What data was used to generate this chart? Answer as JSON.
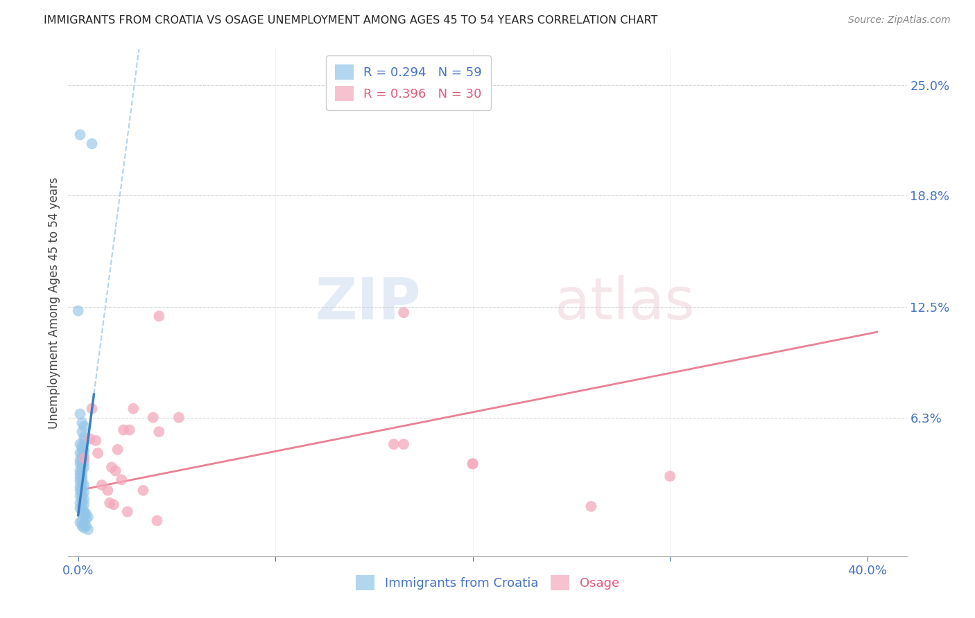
{
  "title": "IMMIGRANTS FROM CROATIA VS OSAGE UNEMPLOYMENT AMONG AGES 45 TO 54 YEARS CORRELATION CHART",
  "source": "Source: ZipAtlas.com",
  "ylabel": "Unemployment Among Ages 45 to 54 years",
  "xlim": [
    -0.005,
    0.42
  ],
  "ylim": [
    -0.015,
    0.27
  ],
  "xtick_values": [
    0.0,
    0.1,
    0.2,
    0.3,
    0.4
  ],
  "xticklabels": [
    "0.0%",
    "",
    "",
    "",
    "40.0%"
  ],
  "ytick_right_labels": [
    "25.0%",
    "18.8%",
    "12.5%",
    "6.3%",
    ""
  ],
  "ytick_right_values": [
    0.25,
    0.188,
    0.125,
    0.063,
    0.0
  ],
  "grid_color": "#cccccc",
  "legend_r1": "R = 0.294",
  "legend_n1": "N = 59",
  "legend_r2": "R = 0.396",
  "legend_n2": "N = 30",
  "blue_color": "#92c5e8",
  "pink_color": "#f4a9bc",
  "trendline_blue_solid_color": "#3a7fc1",
  "trendline_blue_dashed_color": "#aacfe8",
  "trendline_pink_color": "#e8728a",
  "blue_scatter_x": [
    0.001,
    0.007,
    0.0,
    0.001,
    0.002,
    0.003,
    0.002,
    0.003,
    0.003,
    0.001,
    0.002,
    0.003,
    0.002,
    0.003,
    0.001,
    0.002,
    0.003,
    0.002,
    0.001,
    0.003,
    0.001,
    0.002,
    0.003,
    0.002,
    0.001,
    0.002,
    0.001,
    0.002,
    0.001,
    0.002,
    0.001,
    0.002,
    0.003,
    0.001,
    0.002,
    0.001,
    0.003,
    0.002,
    0.001,
    0.002,
    0.003,
    0.002,
    0.001,
    0.003,
    0.002,
    0.001,
    0.002,
    0.003,
    0.004,
    0.003,
    0.005,
    0.004,
    0.002,
    0.001,
    0.003,
    0.002,
    0.004,
    0.003,
    0.005
  ],
  "blue_scatter_y": [
    0.222,
    0.217,
    0.123,
    0.065,
    0.06,
    0.058,
    0.055,
    0.052,
    0.05,
    0.048,
    0.047,
    0.046,
    0.045,
    0.044,
    0.043,
    0.042,
    0.041,
    0.04,
    0.039,
    0.038,
    0.037,
    0.036,
    0.035,
    0.034,
    0.033,
    0.032,
    0.031,
    0.03,
    0.029,
    0.028,
    0.027,
    0.026,
    0.025,
    0.024,
    0.023,
    0.022,
    0.021,
    0.02,
    0.019,
    0.018,
    0.017,
    0.016,
    0.015,
    0.014,
    0.013,
    0.012,
    0.011,
    0.01,
    0.009,
    0.008,
    0.007,
    0.006,
    0.005,
    0.004,
    0.003,
    0.002,
    0.002,
    0.001,
    0.0
  ],
  "pink_scatter_x": [
    0.003,
    0.006,
    0.007,
    0.009,
    0.01,
    0.012,
    0.015,
    0.016,
    0.017,
    0.018,
    0.019,
    0.02,
    0.022,
    0.023,
    0.025,
    0.026,
    0.028,
    0.033,
    0.038,
    0.04,
    0.041,
    0.041,
    0.051,
    0.16,
    0.165,
    0.2,
    0.26,
    0.3,
    0.2,
    0.165
  ],
  "pink_scatter_y": [
    0.04,
    0.051,
    0.068,
    0.05,
    0.043,
    0.025,
    0.022,
    0.015,
    0.035,
    0.014,
    0.033,
    0.045,
    0.028,
    0.056,
    0.01,
    0.056,
    0.068,
    0.022,
    0.063,
    0.005,
    0.055,
    0.12,
    0.063,
    0.048,
    0.048,
    0.037,
    0.013,
    0.03,
    0.037,
    0.122
  ],
  "blue_trendline_x0": 0.0,
  "blue_trendline_y0": 0.008,
  "blue_trendline_slope": 8.5,
  "pink_trendline_x0": 0.0,
  "pink_trendline_y0": 0.022,
  "pink_trendline_slope": 0.22
}
